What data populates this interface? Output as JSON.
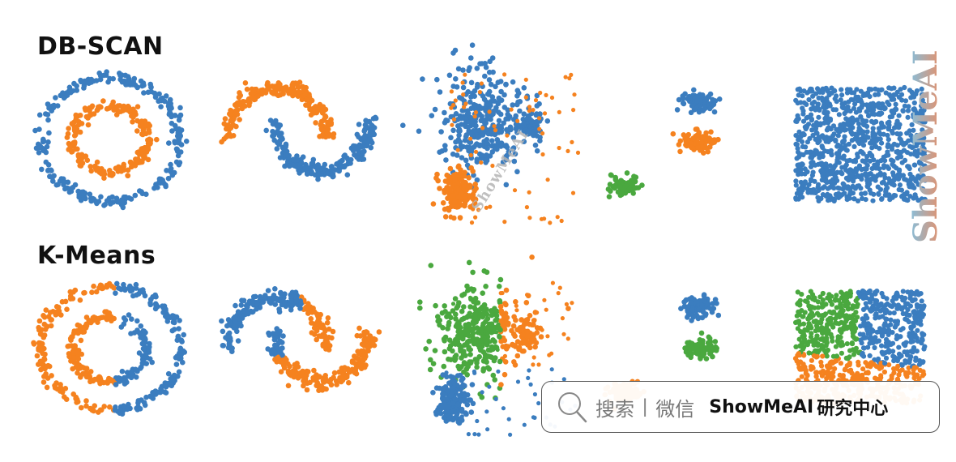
{
  "titles": {
    "dbscan": "DB-SCAN",
    "kmeans": "K-Means"
  },
  "colors": {
    "blue": "#3b7dbf",
    "orange": "#f5821f",
    "green": "#4aa83f"
  },
  "watermark": {
    "vertical": "ShowMeAI",
    "diagonal": "ShowMeAI"
  },
  "search_bar": {
    "icon": "search-icon",
    "search_label": "搜索",
    "separator": "|",
    "wechat_label": "微信",
    "brand": "ShowMeAI",
    "brand_suffix": "研究中心"
  },
  "chart_data": [
    {
      "type": "scatter",
      "row": "DB-SCAN",
      "dataset": "circles",
      "series": [
        {
          "color": "blue",
          "shape": "outer ring"
        },
        {
          "color": "orange",
          "shape": "inner ring"
        }
      ]
    },
    {
      "type": "scatter",
      "row": "DB-SCAN",
      "dataset": "moons",
      "series": [
        {
          "color": "orange",
          "shape": "upper moon"
        },
        {
          "color": "blue",
          "shape": "lower moon"
        }
      ]
    },
    {
      "type": "scatter",
      "row": "DB-SCAN",
      "dataset": "varied blobs",
      "series": [
        {
          "color": "blue",
          "shape": "main blob and right blob"
        },
        {
          "color": "orange",
          "shape": "dense lower blob and scattered noise"
        }
      ]
    },
    {
      "type": "scatter",
      "row": "DB-SCAN",
      "dataset": "three blobs",
      "series": [
        {
          "color": "blue",
          "shape": "top blob"
        },
        {
          "color": "orange",
          "shape": "middle blob"
        },
        {
          "color": "green",
          "shape": "left blob"
        }
      ]
    },
    {
      "type": "scatter",
      "row": "DB-SCAN",
      "dataset": "uniform square",
      "series": [
        {
          "color": "blue",
          "shape": "square"
        }
      ]
    },
    {
      "type": "scatter",
      "row": "K-Means",
      "dataset": "circles",
      "series": [
        {
          "color": "orange",
          "shape": "left half"
        },
        {
          "color": "blue",
          "shape": "right half"
        }
      ]
    },
    {
      "type": "scatter",
      "row": "K-Means",
      "dataset": "moons",
      "series": [
        {
          "color": "blue",
          "shape": "left part"
        },
        {
          "color": "orange",
          "shape": "right part"
        }
      ]
    },
    {
      "type": "scatter",
      "row": "K-Means",
      "dataset": "varied blobs",
      "series": [
        {
          "color": "green",
          "shape": "upper middle"
        },
        {
          "color": "orange",
          "shape": "right"
        },
        {
          "color": "blue",
          "shape": "lower left"
        }
      ]
    },
    {
      "type": "scatter",
      "row": "K-Means",
      "dataset": "three blobs",
      "series": [
        {
          "color": "blue",
          "shape": "top blob"
        },
        {
          "color": "green",
          "shape": "middle blob"
        },
        {
          "color": "orange",
          "shape": "left blob"
        }
      ]
    },
    {
      "type": "scatter",
      "row": "K-Means",
      "dataset": "uniform square",
      "series": [
        {
          "color": "green",
          "shape": "upper left"
        },
        {
          "color": "blue",
          "shape": "upper right"
        },
        {
          "color": "orange",
          "shape": "bottom"
        }
      ]
    }
  ]
}
